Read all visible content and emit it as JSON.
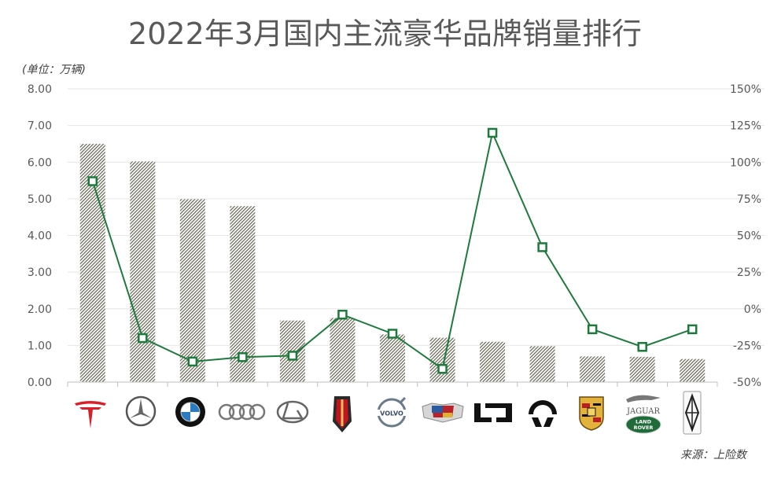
{
  "title": "2022年3月国内主流豪华品牌销量排行",
  "unit": "(单位：万辆)",
  "source": "来源：上险数",
  "colors": {
    "line": "#1e7a3c",
    "bar_hatch": "#3a3a3a",
    "grid": "#e6e6e6",
    "axis_text": "#595959"
  },
  "chart_data": {
    "type": "bar",
    "categories": [
      "tesla-logo",
      "mercedes-logo",
      "bmw-logo",
      "audi-logo",
      "lexus-logo",
      "hongqi-logo",
      "volvo-logo",
      "cadillac-logo",
      "lixiang-logo",
      "nio-logo",
      "porsche-logo",
      "jaguar-landrover-logo",
      "lincoln-logo"
    ],
    "series": [
      {
        "axis": "left",
        "type": "bar",
        "values": [
          6.5,
          6.02,
          4.99,
          4.8,
          1.68,
          1.75,
          1.3,
          1.21,
          1.1,
          0.98,
          0.7,
          0.69,
          0.63
        ]
      },
      {
        "axis": "right",
        "type": "line",
        "values": [
          87,
          -20,
          -36,
          -33,
          -32,
          -4,
          -17,
          -41,
          120,
          42,
          -14,
          -26,
          -14
        ]
      }
    ],
    "y_left": {
      "min": 0,
      "max": 8,
      "ticks": [
        "0.00",
        "1.00",
        "2.00",
        "3.00",
        "4.00",
        "5.00",
        "6.00",
        "7.00",
        "8.00"
      ]
    },
    "y_right": {
      "min": -50,
      "max": 150,
      "ticks": [
        "-50%",
        "-25%",
        "0%",
        "25%",
        "50%",
        "75%",
        "100%",
        "125%",
        "150%"
      ]
    },
    "grid": true,
    "legend": "none"
  },
  "brand_marks": {
    "jaguar_text": "JAGUAR",
    "landrover_line1": "LAND",
    "landrover_line2": "ROVER",
    "volvo_text": "VOLVO"
  }
}
